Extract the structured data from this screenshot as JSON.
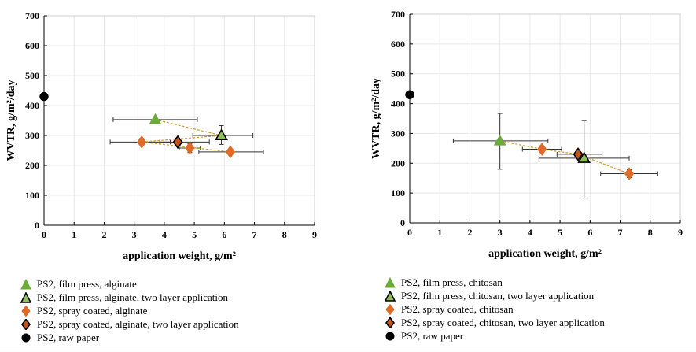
{
  "chart_data": [
    {
      "type": "scatter",
      "title": "",
      "xlabel": "application weight, g/m²",
      "ylabel": "WVTR, g/m²/day",
      "xlim": [
        0,
        9
      ],
      "ylim": [
        0,
        700
      ],
      "xticks": [
        0,
        1,
        2,
        3,
        4,
        5,
        6,
        7,
        8,
        9
      ],
      "yticks": [
        0,
        100,
        200,
        300,
        400,
        500,
        600,
        700
      ],
      "grid": true,
      "legend_position": "below",
      "series": [
        {
          "name": "PS2, film press, alginate",
          "marker": "triangle",
          "color": "#6aab3a",
          "edge": "#6aab3a",
          "points": [
            {
              "x": 3.7,
              "y": 353,
              "xerr": [
                2.3,
                5.1
              ],
              "yerr": null
            }
          ]
        },
        {
          "name": "PS2, film press, alginate, two layer application",
          "marker": "triangle",
          "color": "#8fbf5a",
          "edge": "#000000",
          "points": [
            {
              "x": 5.9,
              "y": 300,
              "xerr": [
                4.95,
                6.95
              ],
              "yerr": [
                270,
                333
              ]
            }
          ]
        },
        {
          "name": "PS2, spray coated, alginate",
          "marker": "diamond",
          "color": "#e06a27",
          "edge": "#e06a27",
          "points": [
            {
              "x": 3.25,
              "y": 278,
              "xerr": [
                2.2,
                4.2
              ],
              "yerr": [
                265,
                290
              ]
            },
            {
              "x": 4.85,
              "y": 258,
              "xerr": [
                4.5,
                5.2
              ],
              "yerr": [
                243,
                273
              ]
            },
            {
              "x": 6.2,
              "y": 245,
              "xerr": [
                5.15,
                7.3
              ],
              "yerr": null
            }
          ]
        },
        {
          "name": "PS2, spray coated, alginate, two layer application",
          "marker": "diamond",
          "color": "#c1531f",
          "edge": "#000000",
          "points": [
            {
              "x": 4.45,
              "y": 278,
              "xerr": [
                3.85,
                5.5
              ],
              "yerr": [
                265,
                291
              ]
            }
          ]
        },
        {
          "name": "PS2, raw paper",
          "marker": "circle",
          "color": "#000000",
          "edge": "#000000",
          "points": [
            {
              "x": 0,
              "y": 430,
              "xerr": null,
              "yerr": null
            }
          ]
        }
      ],
      "trendline": {
        "color": "#d29a2a",
        "points": [
          {
            "x": 3.7,
            "y": 353
          },
          {
            "x": 5.9,
            "y": 300
          },
          {
            "x": 3.25,
            "y": 278
          },
          {
            "x": 6.2,
            "y": 245
          }
        ]
      }
    },
    {
      "type": "scatter",
      "title": "",
      "xlabel": "application weight, g/m²",
      "ylabel": "WVTR, g/m²/day",
      "xlim": [
        0,
        9
      ],
      "ylim": [
        0,
        700
      ],
      "xticks": [
        0,
        1,
        2,
        3,
        4,
        5,
        6,
        7,
        8,
        9
      ],
      "yticks": [
        0,
        100,
        200,
        300,
        400,
        500,
        600,
        700
      ],
      "grid": true,
      "legend_position": "below",
      "series": [
        {
          "name": "PS2, film press, chitosan",
          "marker": "triangle",
          "color": "#6aab3a",
          "edge": "#6aab3a",
          "points": [
            {
              "x": 3.0,
              "y": 275,
              "xerr": [
                1.45,
                4.6
              ],
              "yerr": [
                180,
                367
              ]
            }
          ]
        },
        {
          "name": "PS2, film press, chitosan, two layer application",
          "marker": "triangle",
          "color": "#8fbf5a",
          "edge": "#000000",
          "points": [
            {
              "x": 5.8,
              "y": 217,
              "xerr": [
                4.3,
                7.3
              ],
              "yerr": [
                83,
                343
              ]
            }
          ]
        },
        {
          "name": "PS2, spray coated, chitosan",
          "marker": "diamond",
          "color": "#e06a27",
          "edge": "#e06a27",
          "points": [
            {
              "x": 4.4,
              "y": 247,
              "xerr": [
                3.75,
                5.05
              ],
              "yerr": [
                236,
                258
              ]
            },
            {
              "x": 7.3,
              "y": 165,
              "xerr": [
                6.35,
                8.25
              ],
              "yerr": [
                152,
                178
              ]
            }
          ]
        },
        {
          "name": "PS2, spray coated, chitosan, two layer application",
          "marker": "diamond",
          "color": "#c1531f",
          "edge": "#000000",
          "points": [
            {
              "x": 5.6,
              "y": 230,
              "xerr": [
                4.9,
                6.4
              ],
              "yerr": null
            }
          ]
        },
        {
          "name": "PS2, raw paper",
          "marker": "circle",
          "color": "#000000",
          "edge": "#000000",
          "points": [
            {
              "x": 0,
              "y": 430,
              "xerr": null,
              "yerr": null
            }
          ]
        }
      ],
      "trendline": {
        "color": "#d29a2a",
        "points": [
          {
            "x": 3.0,
            "y": 275
          },
          {
            "x": 4.4,
            "y": 247
          },
          {
            "x": 5.6,
            "y": 230
          },
          {
            "x": 7.3,
            "y": 165
          }
        ]
      }
    }
  ]
}
